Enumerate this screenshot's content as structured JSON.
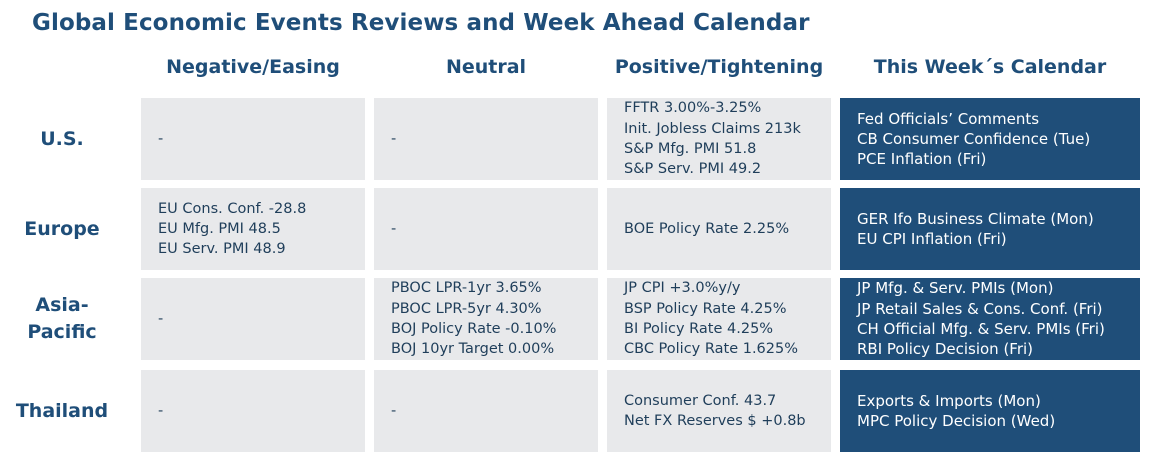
{
  "title": "Global Economic Events Reviews and Week Ahead Calendar",
  "columns": [
    "Negative/Easing",
    "Neutral",
    "Positive/Tightening",
    "This Week´s Calendar"
  ],
  "rows": [
    {
      "label": "U.S.",
      "negative": [
        "-"
      ],
      "neutral": [
        "-"
      ],
      "positive": [
        "FFTR 3.00%-3.25%",
        "Init. Jobless Claims 213k",
        "S&P Mfg. PMI 51.8",
        "S&P Serv. PMI 49.2"
      ],
      "calendar": [
        "Fed Officials’ Comments",
        "CB Consumer Confidence (Tue)",
        "PCE Inflation (Fri)"
      ]
    },
    {
      "label": "Europe",
      "negative": [
        "EU Cons. Conf. -28.8",
        "EU Mfg. PMI 48.5",
        "EU Serv. PMI 48.9"
      ],
      "neutral": [
        "-"
      ],
      "positive": [
        "BOE Policy Rate 2.25%"
      ],
      "calendar": [
        "GER Ifo Business Climate (Mon)",
        "EU CPI Inflation (Fri)"
      ]
    },
    {
      "label": "Asia-Pacific",
      "label_lines": [
        "Asia-",
        "Pacific"
      ],
      "negative": [
        "-"
      ],
      "neutral": [
        "PBOC LPR-1yr 3.65%",
        "PBOC LPR-5yr 4.30%",
        "BOJ Policy Rate -0.10%",
        "BOJ 10yr Target 0.00%"
      ],
      "positive": [
        "JP CPI +3.0%y/y",
        "BSP Policy Rate 4.25%",
        "BI Policy Rate 4.25%",
        "CBC Policy Rate 1.625%"
      ],
      "calendar": [
        "JP Mfg. & Serv. PMIs (Mon)",
        "JP Retail Sales  & Cons. Conf. (Fri)",
        "CH Official Mfg. & Serv. PMIs (Fri)",
        "RBI Policy Decision (Fri)"
      ]
    },
    {
      "label": "Thailand",
      "negative": [
        "-"
      ],
      "neutral": [
        "-"
      ],
      "positive": [
        "Consumer Conf. 43.7",
        "Net FX Reserves $ +0.8b"
      ],
      "calendar": [
        "Exports & Imports (Mon)",
        "MPC Policy Decision (Wed)"
      ]
    }
  ],
  "colors": {
    "title": "#1f4e79",
    "cell_bg": "#e8e9eb",
    "calendar_bg": "#1f4e79",
    "calendar_text": "#ffffff"
  }
}
